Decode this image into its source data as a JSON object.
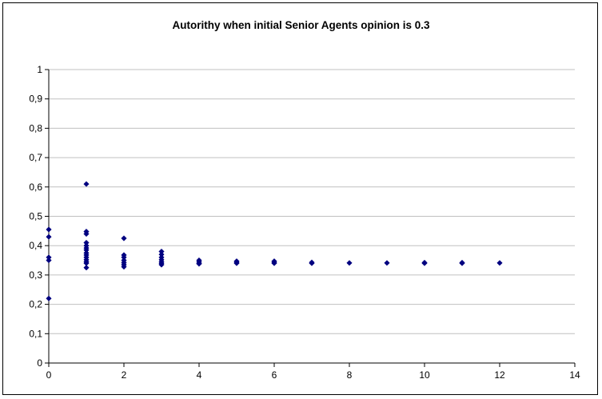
{
  "chart_data": {
    "type": "scatter",
    "title": "Autorithy when initial Senior Agents opinion is 0.3",
    "xlabel": "",
    "ylabel": "",
    "xlim": [
      0,
      14
    ],
    "ylim": [
      0,
      1
    ],
    "x_ticks": [
      "0",
      "2",
      "4",
      "6",
      "8",
      "10",
      "12",
      "14"
    ],
    "y_ticks": [
      "0",
      "0,1",
      "0,2",
      "0,3",
      "0,4",
      "0,5",
      "0,6",
      "0,7",
      "0,8",
      "0,9",
      "1"
    ],
    "grid": "horizontal",
    "legend": "none",
    "marker_color": "#000080",
    "points": [
      [
        0,
        0.455
      ],
      [
        0,
        0.43
      ],
      [
        0,
        0.36
      ],
      [
        0,
        0.35
      ],
      [
        0,
        0.22
      ],
      [
        1,
        0.61
      ],
      [
        1,
        0.448
      ],
      [
        1,
        0.44
      ],
      [
        1,
        0.41
      ],
      [
        1,
        0.4
      ],
      [
        1,
        0.392
      ],
      [
        1,
        0.385
      ],
      [
        1,
        0.375
      ],
      [
        1,
        0.368
      ],
      [
        1,
        0.36
      ],
      [
        1,
        0.352
      ],
      [
        1,
        0.345
      ],
      [
        1,
        0.34
      ],
      [
        1,
        0.325
      ],
      [
        2,
        0.425
      ],
      [
        2,
        0.368
      ],
      [
        2,
        0.36
      ],
      [
        2,
        0.35
      ],
      [
        2,
        0.342
      ],
      [
        2,
        0.335
      ],
      [
        2,
        0.328
      ],
      [
        3,
        0.38
      ],
      [
        3,
        0.37
      ],
      [
        3,
        0.36
      ],
      [
        3,
        0.352
      ],
      [
        3,
        0.345
      ],
      [
        3,
        0.34
      ],
      [
        3,
        0.335
      ],
      [
        4,
        0.35
      ],
      [
        4,
        0.345
      ],
      [
        4,
        0.34
      ],
      [
        4,
        0.338
      ],
      [
        5,
        0.347
      ],
      [
        5,
        0.343
      ],
      [
        5,
        0.34
      ],
      [
        6,
        0.347
      ],
      [
        6,
        0.343
      ],
      [
        6,
        0.34
      ],
      [
        7,
        0.343
      ],
      [
        7,
        0.34
      ],
      [
        8,
        0.341
      ],
      [
        9,
        0.341
      ],
      [
        10,
        0.342
      ],
      [
        10,
        0.34
      ],
      [
        11,
        0.342
      ],
      [
        11,
        0.34
      ],
      [
        12,
        0.341
      ]
    ]
  }
}
